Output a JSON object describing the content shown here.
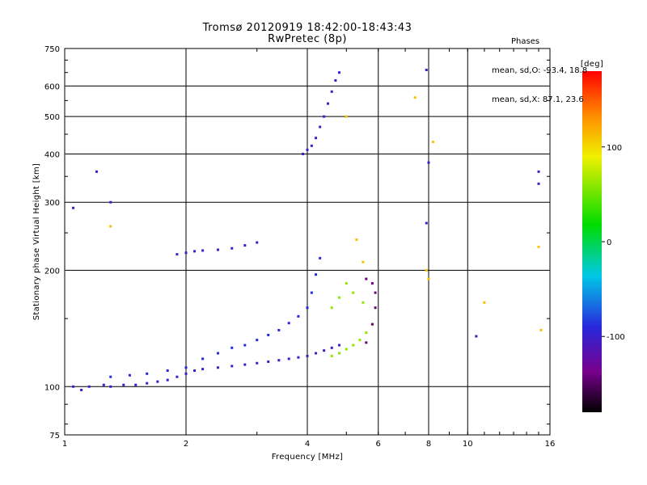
{
  "title_line1": "Tromsø 20120919 18:42:00-18:43:43",
  "title_line2": "RwPretec (8p)",
  "phases": {
    "header": "Phases",
    "line_o": "mean, sd,O: -93.4, 18.8",
    "line_x": "mean, sd,X: 87.1, 23.6"
  },
  "chart_data": {
    "type": "scatter",
    "xlabel": "Frequency [MHz]",
    "ylabel": "Stationary phase Virtual Height [km]",
    "x_scale": "log",
    "y_scale": "log",
    "xlim": [
      1,
      16
    ],
    "ylim": [
      75,
      750
    ],
    "x_ticks": [
      1,
      2,
      4,
      6,
      8,
      10,
      16
    ],
    "y_ticks": [
      75,
      100,
      200,
      300,
      400,
      500,
      600,
      750
    ],
    "x_gridlines": [
      2,
      4,
      6,
      8,
      10
    ],
    "y_gridlines": [
      100,
      200,
      300,
      400,
      500,
      600
    ],
    "grid": true,
    "colorbar": {
      "label": "[deg]",
      "ticks": [
        100,
        0,
        -100
      ],
      "range": [
        -180,
        180
      ],
      "colormap": "rainbow"
    },
    "series": [
      {
        "name": "",
        "color_phase": -100,
        "points": [
          [
            1.05,
            100
          ],
          [
            1.1,
            98
          ],
          [
            1.15,
            100
          ],
          [
            1.25,
            101
          ],
          [
            1.3,
            100
          ],
          [
            1.4,
            101
          ],
          [
            1.5,
            101
          ],
          [
            1.6,
            102
          ],
          [
            1.7,
            103
          ],
          [
            1.8,
            104
          ],
          [
            1.9,
            106
          ],
          [
            2.0,
            108
          ],
          [
            2.1,
            110
          ],
          [
            2.2,
            111
          ],
          [
            2.4,
            112
          ],
          [
            2.6,
            113
          ],
          [
            2.8,
            114
          ],
          [
            3.0,
            115
          ],
          [
            3.2,
            116
          ],
          [
            3.4,
            117
          ],
          [
            3.6,
            118
          ],
          [
            3.8,
            119
          ],
          [
            4.0,
            120
          ],
          [
            4.2,
            122
          ],
          [
            4.4,
            124
          ],
          [
            4.6,
            126
          ],
          [
            4.8,
            128
          ]
        ]
      },
      {
        "name": "",
        "color_phase": -90,
        "points": [
          [
            1.3,
            106
          ],
          [
            1.45,
            107
          ],
          [
            1.6,
            108
          ],
          [
            1.8,
            110
          ],
          [
            2.0,
            112
          ],
          [
            2.2,
            118
          ],
          [
            2.4,
            122
          ],
          [
            2.6,
            126
          ],
          [
            2.8,
            128
          ],
          [
            3.0,
            132
          ],
          [
            3.2,
            136
          ],
          [
            3.4,
            140
          ],
          [
            3.6,
            146
          ],
          [
            3.8,
            152
          ],
          [
            4.0,
            160
          ],
          [
            4.1,
            175
          ],
          [
            4.2,
            195
          ],
          [
            4.3,
            215
          ]
        ]
      },
      {
        "name": "",
        "color_phase": -100,
        "points": [
          [
            1.9,
            220
          ],
          [
            2.0,
            222
          ],
          [
            2.1,
            224
          ],
          [
            2.2,
            225
          ],
          [
            2.4,
            226
          ],
          [
            2.6,
            228
          ],
          [
            2.8,
            232
          ],
          [
            3.0,
            236
          ]
        ]
      },
      {
        "name": "",
        "color_phase": -100,
        "points": [
          [
            3.9,
            400
          ],
          [
            4.0,
            410
          ],
          [
            4.1,
            420
          ],
          [
            4.2,
            440
          ],
          [
            4.3,
            470
          ],
          [
            4.4,
            500
          ],
          [
            4.5,
            540
          ],
          [
            4.6,
            580
          ],
          [
            4.7,
            620
          ],
          [
            4.8,
            650
          ]
        ]
      },
      {
        "name": "",
        "color_phase": 60,
        "points": [
          [
            4.6,
            120
          ],
          [
            4.8,
            122
          ],
          [
            5.0,
            125
          ],
          [
            5.2,
            128
          ],
          [
            5.4,
            132
          ],
          [
            5.6,
            138
          ],
          [
            5.8,
            145
          ],
          [
            5.5,
            165
          ],
          [
            5.2,
            175
          ],
          [
            5.0,
            185
          ],
          [
            4.8,
            170
          ],
          [
            4.6,
            160
          ]
        ]
      },
      {
        "name": "",
        "color_phase": -140,
        "points": [
          [
            5.6,
            130
          ],
          [
            5.8,
            145
          ],
          [
            5.9,
            160
          ],
          [
            5.9,
            175
          ],
          [
            5.8,
            185
          ],
          [
            5.6,
            190
          ]
        ]
      },
      {
        "name": "",
        "color_phase": -100,
        "points": [
          [
            1.2,
            360
          ],
          [
            1.3,
            300
          ],
          [
            1.05,
            290
          ],
          [
            7.9,
            660
          ],
          [
            8.0,
            380
          ],
          [
            15.0,
            360
          ],
          [
            15.0,
            335
          ],
          [
            10.5,
            135
          ],
          [
            7.9,
            265
          ]
        ]
      },
      {
        "name": "",
        "color_phase": 110,
        "points": [
          [
            1.3,
            260
          ],
          [
            5.3,
            240
          ],
          [
            5.5,
            210
          ],
          [
            7.9,
            200
          ],
          [
            8.0,
            190
          ],
          [
            15.0,
            230
          ],
          [
            15.2,
            140
          ],
          [
            11.0,
            165
          ],
          [
            7.4,
            560
          ],
          [
            8.2,
            430
          ],
          [
            5.0,
            500
          ]
        ]
      }
    ]
  }
}
